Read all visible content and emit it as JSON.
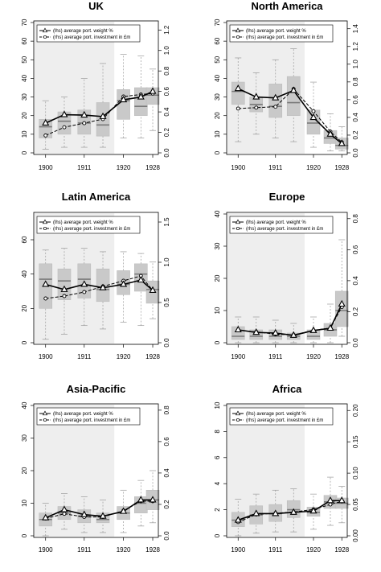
{
  "legend": {
    "lhs_label": "(lhs) average port. weight %",
    "rhs_label": "(rhs) average port. investment in £m"
  },
  "chart_data": [
    {
      "type": "boxplot-line",
      "title": "UK",
      "x_ticks": [
        "1900",
        "1911",
        "1920",
        "1928"
      ],
      "left_ticks": [
        "0",
        "10",
        "20",
        "30",
        "40",
        "50",
        "60",
        "70"
      ],
      "right_ticks": [
        "0.0",
        "0.2",
        "0.4",
        "0.6",
        "0.8",
        "1.0",
        "1.2"
      ],
      "ylim_left": [
        0,
        70
      ],
      "ylim_right": [
        0,
        1.273
      ],
      "grid": false,
      "legend_position": "top-left",
      "shaded_periods": [
        "1900–1914"
      ],
      "periods": [
        "1900",
        "1905",
        "1911",
        "1914",
        "1920",
        "1924",
        "1928"
      ],
      "boxes": [
        {
          "whisker_low": 2,
          "q1": 8,
          "median": 14,
          "q3": 18,
          "whisker_high": 28
        },
        {
          "whisker_low": 3,
          "q1": 10,
          "median": 17,
          "q3": 22,
          "whisker_high": 30
        },
        {
          "whisker_low": 3,
          "q1": 10,
          "median": 16,
          "q3": 23,
          "whisker_high": 40
        },
        {
          "whisker_low": 3,
          "q1": 9,
          "median": 15,
          "q3": 27,
          "whisker_high": 48
        },
        {
          "whisker_low": 8,
          "q1": 18,
          "median": 28,
          "q3": 34,
          "whisker_high": 53
        },
        {
          "whisker_low": 8,
          "q1": 20,
          "median": 25,
          "q3": 35,
          "whisker_high": 52
        },
        {
          "whisker_low": 12,
          "q1": 26,
          "median": 31,
          "q3": 35,
          "whisker_high": 45
        }
      ],
      "series": [
        {
          "name": "(lhs) average port. weight %",
          "axis": "left",
          "values": [
            16,
            20.5,
            20.3,
            19.5,
            28.5,
            30,
            33
          ]
        },
        {
          "name": "(rhs) average port. investment in £m",
          "axis": "right",
          "values": [
            0.17,
            0.25,
            0.29,
            0.33,
            0.55,
            0.57,
            0.58
          ]
        }
      ]
    },
    {
      "type": "boxplot-line",
      "title": "North America",
      "x_ticks": [
        "1900",
        "1911",
        "1920",
        "1928"
      ],
      "left_ticks": [
        "0",
        "10",
        "20",
        "30",
        "40",
        "50",
        "60",
        "70"
      ],
      "right_ticks": [
        "0.0",
        "0.2",
        "0.4",
        "0.6",
        "0.8",
        "1.0",
        "1.2",
        "1.4"
      ],
      "ylim_left": [
        0,
        70
      ],
      "ylim_right": [
        0,
        1.47
      ],
      "grid": false,
      "legend_position": "top-left",
      "shaded_periods": [
        "1900–1914"
      ],
      "periods": [
        "1900",
        "1905",
        "1911",
        "1914",
        "1920",
        "1924",
        "1928"
      ],
      "boxes": [
        {
          "whisker_low": 6,
          "q1": 26,
          "median": 33,
          "q3": 38,
          "whisker_high": 51
        },
        {
          "whisker_low": 10,
          "q1": 22,
          "median": 26,
          "q3": 30,
          "whisker_high": 43
        },
        {
          "whisker_low": 8,
          "q1": 19,
          "median": 25,
          "q3": 37,
          "whisker_high": 50
        },
        {
          "whisker_low": 6,
          "q1": 20,
          "median": 27,
          "q3": 41,
          "whisker_high": 56
        },
        {
          "whisker_low": 3,
          "q1": 10,
          "median": 16,
          "q3": 23,
          "whisker_high": 38
        },
        {
          "whisker_low": 1,
          "q1": 5,
          "median": 8,
          "q3": 12,
          "whisker_high": 21
        },
        {
          "whisker_low": 1,
          "q1": 2,
          "median": 4,
          "q3": 8,
          "whisker_high": 14
        }
      ],
      "series": [
        {
          "name": "(lhs) average port. weight %",
          "axis": "left",
          "values": [
            34.5,
            30,
            29.5,
            33.5,
            19,
            10,
            5
          ]
        },
        {
          "name": "(rhs) average port. investment in £m",
          "axis": "right",
          "values": [
            0.5,
            0.51,
            0.52,
            0.72,
            0.47,
            0.24,
            0.12
          ]
        }
      ]
    },
    {
      "type": "boxplot-line",
      "title": "Latin America",
      "x_ticks": [
        "1900",
        "1911",
        "1920",
        "1928"
      ],
      "left_ticks": [
        "0",
        "20",
        "40",
        "60"
      ],
      "right_ticks": [
        "0.0",
        "0.5",
        "1.0",
        "1.5"
      ],
      "ylim_left": [
        0,
        75
      ],
      "ylim_right": [
        0,
        1.6
      ],
      "grid": false,
      "legend_position": "top-left",
      "shaded_periods": [
        "1900–1914"
      ],
      "periods": [
        "1900",
        "1905",
        "1911",
        "1914",
        "1920",
        "1924",
        "1928"
      ],
      "boxes": [
        {
          "whisker_low": 2,
          "q1": 20,
          "median": 37,
          "q3": 46,
          "whisker_high": 54
        },
        {
          "whisker_low": 5,
          "q1": 25,
          "median": 36,
          "q3": 43,
          "whisker_high": 55
        },
        {
          "whisker_low": 10,
          "q1": 26,
          "median": 37,
          "q3": 46,
          "whisker_high": 55
        },
        {
          "whisker_low": 8,
          "q1": 24,
          "median": 31,
          "q3": 43,
          "whisker_high": 53
        },
        {
          "whisker_low": 12,
          "q1": 28,
          "median": 34,
          "q3": 42,
          "whisker_high": 53
        },
        {
          "whisker_low": 10,
          "q1": 30,
          "median": 40,
          "q3": 46,
          "whisker_high": 52
        },
        {
          "whisker_low": 14,
          "q1": 23,
          "median": 31,
          "q3": 36,
          "whisker_high": 47
        }
      ],
      "series": [
        {
          "name": "(lhs) average port. weight %",
          "axis": "left",
          "values": [
            34,
            31,
            34,
            32,
            34,
            36.5,
            30.5
          ]
        },
        {
          "name": "(rhs) average port. investment in £m",
          "axis": "right",
          "values": [
            0.55,
            0.58,
            0.63,
            0.7,
            0.77,
            0.83,
            0.65
          ]
        }
      ]
    },
    {
      "type": "boxplot-line",
      "title": "Europe",
      "x_ticks": [
        "1900",
        "1911",
        "1920",
        "1928"
      ],
      "left_ticks": [
        "0",
        "10",
        "20",
        "30",
        "40"
      ],
      "right_ticks": [
        "0.0",
        "0.2",
        "0.4",
        "0.6",
        "0.8"
      ],
      "ylim_left": [
        0,
        40
      ],
      "ylim_right": [
        0,
        0.83
      ],
      "grid": false,
      "legend_position": "top-left",
      "shaded_periods": [
        "1900–1914"
      ],
      "periods": [
        "1900",
        "1905",
        "1911",
        "1914",
        "1920",
        "1924",
        "1928"
      ],
      "boxes": [
        {
          "whisker_low": 0,
          "q1": 1,
          "median": 2,
          "q3": 5,
          "whisker_high": 8
        },
        {
          "whisker_low": 0,
          "q1": 1,
          "median": 2,
          "q3": 4,
          "whisker_high": 8
        },
        {
          "whisker_low": 0,
          "q1": 1,
          "median": 2,
          "q3": 4,
          "whisker_high": 7
        },
        {
          "whisker_low": 0,
          "q1": 1,
          "median": 2,
          "q3": 3,
          "whisker_high": 6
        },
        {
          "whisker_low": 0,
          "q1": 1,
          "median": 2,
          "q3": 4,
          "whisker_high": 8
        },
        {
          "whisker_low": 0,
          "q1": 2,
          "median": 4,
          "q3": 6,
          "whisker_high": 12
        },
        {
          "whisker_low": 2,
          "q1": 5,
          "median": 10,
          "q3": 16,
          "whisker_high": 32
        }
      ],
      "series": [
        {
          "name": "(lhs) average port. weight %",
          "axis": "left",
          "values": [
            4,
            3.2,
            3,
            2.3,
            3.8,
            4.5,
            12
          ]
        },
        {
          "name": "(rhs) average port. investment in £m",
          "axis": "right",
          "values": [
            0.08,
            0.07,
            0.055,
            0.05,
            0.08,
            0.095,
            0.23
          ]
        }
      ]
    },
    {
      "type": "boxplot-line",
      "title": "Asia-Pacific",
      "x_ticks": [
        "1900",
        "1911",
        "1920",
        "1928"
      ],
      "left_ticks": [
        "0",
        "10",
        "20",
        "30",
        "40"
      ],
      "right_ticks": [
        "0.0",
        "0.2",
        "0.4",
        "0.6",
        "0.8"
      ],
      "ylim_left": [
        0,
        40
      ],
      "ylim_right": [
        0,
        0.83
      ],
      "grid": false,
      "legend_position": "top-left",
      "shaded_periods": [
        "1900–1914"
      ],
      "periods": [
        "1900",
        "1905",
        "1911",
        "1914",
        "1920",
        "1924",
        "1928"
      ],
      "boxes": [
        {
          "whisker_low": 0,
          "q1": 3,
          "median": 5,
          "q3": 7,
          "whisker_high": 10
        },
        {
          "whisker_low": 2,
          "q1": 5,
          "median": 7,
          "q3": 9,
          "whisker_high": 13
        },
        {
          "whisker_low": 1,
          "q1": 4,
          "median": 6,
          "q3": 8,
          "whisker_high": 12
        },
        {
          "whisker_low": 1,
          "q1": 4,
          "median": 5,
          "q3": 7,
          "whisker_high": 11
        },
        {
          "whisker_low": 1,
          "q1": 5,
          "median": 7,
          "q3": 9,
          "whisker_high": 14
        },
        {
          "whisker_low": 3,
          "q1": 7,
          "median": 10,
          "q3": 12,
          "whisker_high": 17
        },
        {
          "whisker_low": 4,
          "q1": 8,
          "median": 11,
          "q3": 14,
          "whisker_high": 20
        }
      ],
      "series": [
        {
          "name": "(lhs) average port. weight %",
          "axis": "left",
          "values": [
            5.5,
            8,
            6.5,
            6,
            7.5,
            11,
            11
          ]
        },
        {
          "name": "(rhs) average port. investment in £m",
          "axis": "right",
          "values": [
            0.11,
            0.14,
            0.12,
            0.12,
            0.16,
            0.22,
            0.22
          ]
        }
      ]
    },
    {
      "type": "boxplot-line",
      "title": "Africa",
      "x_ticks": [
        "1900",
        "1911",
        "1920",
        "1928"
      ],
      "left_ticks": [
        "0",
        "2",
        "4",
        "6",
        "8",
        "10"
      ],
      "right_ticks": [
        "0.00",
        "0.05",
        "0.10",
        "0.15",
        "0.20"
      ],
      "ylim_left": [
        0,
        10
      ],
      "ylim_right": [
        0,
        0.208
      ],
      "grid": false,
      "legend_position": "top-left",
      "shaded_periods": [
        "1900–1914"
      ],
      "periods": [
        "1900",
        "1905",
        "1911",
        "1914",
        "1920",
        "1924",
        "1928"
      ],
      "boxes": [
        {
          "whisker_low": 0,
          "q1": 0.7,
          "median": 1.2,
          "q3": 1.8,
          "whisker_high": 2.8
        },
        {
          "whisker_low": 0.2,
          "q1": 0.9,
          "median": 1.6,
          "q3": 2.3,
          "whisker_high": 3.2
        },
        {
          "whisker_low": 0.3,
          "q1": 1.1,
          "median": 1.7,
          "q3": 2.4,
          "whisker_high": 3.5
        },
        {
          "whisker_low": 0.3,
          "q1": 1.4,
          "median": 2.0,
          "q3": 2.7,
          "whisker_high": 3.6
        },
        {
          "whisker_low": 0.5,
          "q1": 1.5,
          "median": 1.8,
          "q3": 2.2,
          "whisker_high": 3.2
        },
        {
          "whisker_low": 0.8,
          "q1": 2.1,
          "median": 2.6,
          "q3": 3.1,
          "whisker_high": 4.5
        },
        {
          "whisker_low": 1,
          "q1": 2.1,
          "median": 2.5,
          "q3": 2.9,
          "whisker_high": 3.8
        }
      ],
      "series": [
        {
          "name": "(lhs) average port. weight %",
          "axis": "left",
          "values": [
            1.2,
            1.7,
            1.7,
            1.8,
            1.9,
            2.7,
            2.7
          ]
        },
        {
          "name": "(rhs) average port. investment in £m",
          "axis": "right",
          "values": [
            0.022,
            0.034,
            0.036,
            0.038,
            0.042,
            0.05,
            0.055
          ]
        }
      ]
    }
  ]
}
